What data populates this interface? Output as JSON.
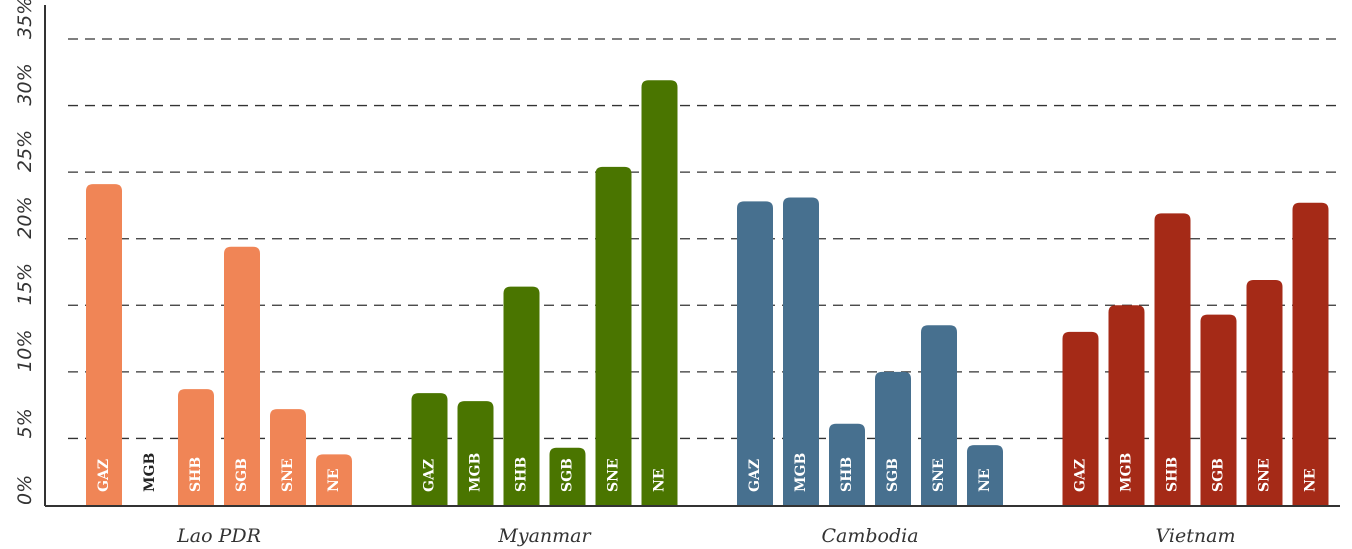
{
  "chart_data": {
    "type": "bar",
    "categories": [
      "Lao PDR",
      "Myanmar",
      "Cambodia",
      "Vietnam"
    ],
    "colors": [
      "#f08556",
      "#4a7500",
      "#47708f",
      "#a52a17"
    ],
    "series": [
      {
        "name": "GAZ",
        "values": [
          24.1,
          8.4,
          22.8,
          13.0
        ]
      },
      {
        "name": "MGB",
        "values": [
          0,
          7.8,
          23.1,
          15.0
        ]
      },
      {
        "name": "SHB",
        "values": [
          8.7,
          16.4,
          6.1,
          21.9
        ]
      },
      {
        "name": "SGB",
        "values": [
          19.4,
          4.3,
          10.0,
          14.3
        ]
      },
      {
        "name": "SNE",
        "values": [
          7.2,
          25.4,
          13.5,
          16.9
        ]
      },
      {
        "name": "NE",
        "values": [
          3.8,
          31.9,
          4.5,
          22.7
        ]
      }
    ],
    "ylim": [
      0,
      35
    ],
    "yticks": [
      {
        "value": 0,
        "label": "0%"
      },
      {
        "value": 5,
        "label": "5%"
      },
      {
        "value": 10,
        "label": "10%"
      },
      {
        "value": 15,
        "label": "15%"
      },
      {
        "value": 20,
        "label": "20%"
      },
      {
        "value": 25,
        "label": "25%"
      },
      {
        "value": 30,
        "label": "30%"
      },
      {
        "value": 35,
        "label": "35%"
      }
    ],
    "grid": true
  }
}
